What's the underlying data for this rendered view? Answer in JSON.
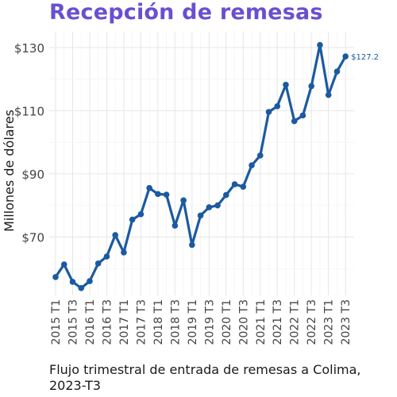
{
  "chart_data": {
    "type": "line",
    "title": "Recepción de remesas",
    "caption": "Flujo trimestral de entrada de remesas a Colima, 2023-T3",
    "ylabel": "Millones de dólares",
    "xlabel": "",
    "ylim": [
      51.5,
      135
    ],
    "yticks": [
      70,
      90,
      110,
      130
    ],
    "ytick_labels": [
      "$70",
      "$90",
      "$110",
      "$130"
    ],
    "grid": true,
    "line_color": "#1b5aa0",
    "categories": [
      "2015 T1",
      "2015 T2",
      "2015 T3",
      "2015 T4",
      "2016 T1",
      "2016 T2",
      "2016 T3",
      "2016 T4",
      "2017 T1",
      "2017 T2",
      "2017 T3",
      "2017 T4",
      "2018 T1",
      "2018 T2",
      "2018 T3",
      "2018 T4",
      "2019 T1",
      "2019 T2",
      "2019 T3",
      "2019 T4",
      "2020 T1",
      "2020 T2",
      "2020 T3",
      "2020 T4",
      "2021 T1",
      "2021 T2",
      "2021 T3",
      "2021 T4",
      "2022 T1",
      "2022 T2",
      "2022 T3",
      "2022 T4",
      "2023 T1",
      "2023 T2",
      "2023 T3"
    ],
    "tick_labels": [
      "2015 T1",
      "2015 T3",
      "2016 T1",
      "2016 T3",
      "2017 T1",
      "2017 T3",
      "2018 T1",
      "2018 T3",
      "2019 T1",
      "2019 T3",
      "2020 T1",
      "2020 T3",
      "2021 T1",
      "2021 T3",
      "2022 T1",
      "2022 T3",
      "2023 T1",
      "2023 T3"
    ],
    "values": [
      57.3,
      61.3,
      55.8,
      53.8,
      56.0,
      61.6,
      63.8,
      70.6,
      65.1,
      75.5,
      77.2,
      85.5,
      83.6,
      83.4,
      73.6,
      81.6,
      67.5,
      76.8,
      79.4,
      80.0,
      83.3,
      86.7,
      85.9,
      92.7,
      95.8,
      109.6,
      111.4,
      118.2,
      106.7,
      108.5,
      117.8,
      130.8,
      115.0,
      122.4,
      127.2
    ],
    "last_value_label": "$127.2"
  }
}
